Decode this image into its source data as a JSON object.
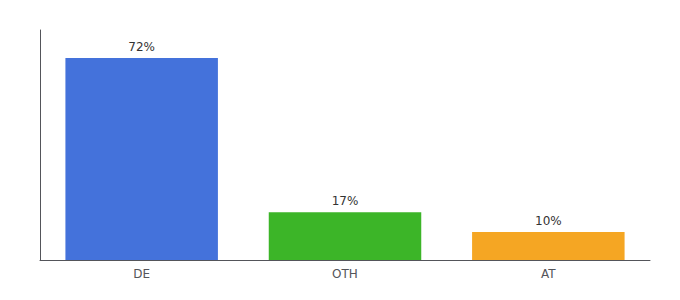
{
  "chart_data": {
    "type": "bar",
    "categories": [
      "DE",
      "OTH",
      "AT"
    ],
    "values": [
      72,
      17,
      10
    ],
    "value_labels": [
      "72%",
      "17%",
      "10%"
    ],
    "colors": [
      "#4472db",
      "#3cb528",
      "#f5a623"
    ],
    "ylim": [
      0,
      82
    ],
    "grid": false,
    "data_labels": true,
    "tick_labels": "x"
  }
}
